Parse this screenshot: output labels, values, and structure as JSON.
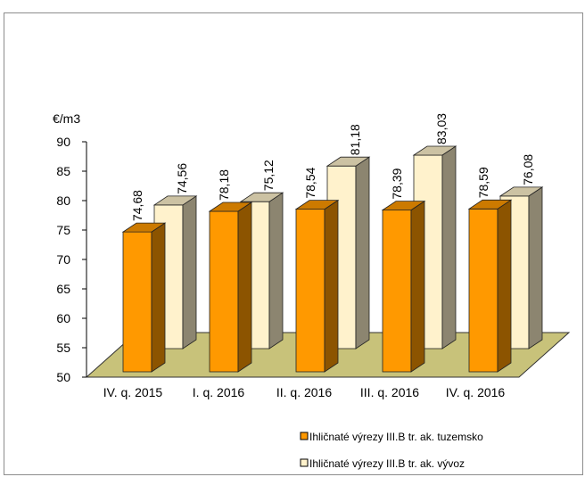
{
  "chart_data": {
    "type": "bar",
    "categories": [
      "IV. q. 2015",
      "I. q. 2016",
      "II. q. 2016",
      "III. q. 2016",
      "IV. q. 2016"
    ],
    "series": [
      {
        "name": "Ihličnaté výrezy III.B tr. ak. tuzemsko",
        "values": [
          74.68,
          78.18,
          78.54,
          78.39,
          78.59
        ],
        "labels": [
          "74,68",
          "78,18",
          "78,54",
          "78,39",
          "78,59"
        ],
        "color": "#FF9900"
      },
      {
        "name": "Ihličnaté výrezy III.B tr. ak. vývoz",
        "values": [
          74.56,
          75.12,
          81.18,
          83.03,
          76.08
        ],
        "labels": [
          "74,56",
          "75,12",
          "81,18",
          "83,03",
          "76,08"
        ],
        "color": "#FFF2CC"
      }
    ],
    "ylabel": "€/m3",
    "ylim": [
      50,
      90
    ],
    "yticks": [
      "50",
      "55",
      "60",
      "65",
      "70",
      "75",
      "80",
      "85",
      "90"
    ],
    "floor_color": "#C8C27A",
    "legend_position": "bottom-right"
  }
}
